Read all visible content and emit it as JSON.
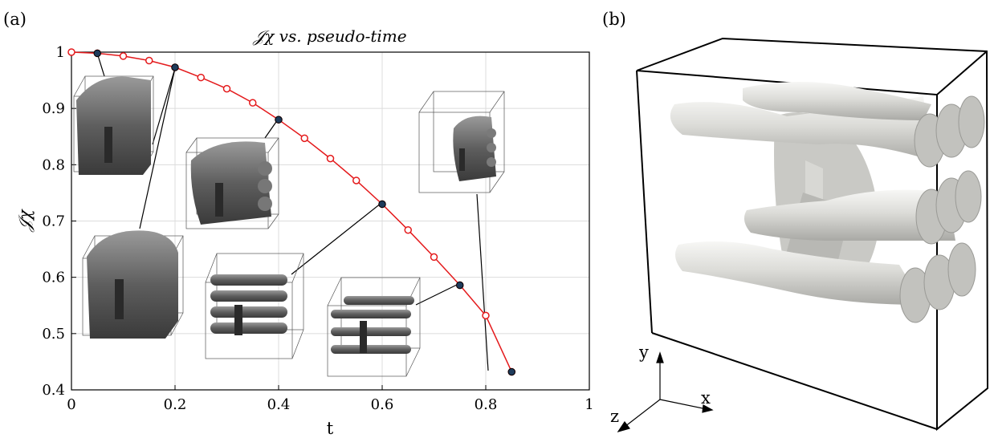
{
  "panels": {
    "a_label": "(a)",
    "b_label": "(b)"
  },
  "chart_data": {
    "type": "line",
    "title": "𝒥χ vs. pseudo-time",
    "xlabel": "t",
    "ylabel": "𝒥χ",
    "xlim": [
      0,
      1
    ],
    "ylim": [
      0.4,
      1
    ],
    "xticks": [
      0,
      0.2,
      0.4,
      0.6,
      0.8,
      1
    ],
    "xtick_labels": [
      "0",
      "0.2",
      "0.4",
      "0.6",
      "0.8",
      "1"
    ],
    "yticks": [
      0.4,
      0.5,
      0.6,
      0.7,
      0.8,
      0.9,
      1
    ],
    "ytick_labels": [
      "0.4",
      "0.5",
      "0.6",
      "0.7",
      "0.8",
      "0.9",
      "1"
    ],
    "grid": true,
    "series": [
      {
        "color": "#e41a1c",
        "marker": "open-circle",
        "x": [
          0,
          0.05,
          0.1,
          0.15,
          0.2,
          0.25,
          0.3,
          0.35,
          0.4,
          0.45,
          0.5,
          0.55,
          0.6,
          0.65,
          0.7,
          0.75,
          0.8,
          0.85
        ],
        "y": [
          1.0,
          0.998,
          0.993,
          0.985,
          0.973,
          0.955,
          0.935,
          0.91,
          0.88,
          0.847,
          0.811,
          0.772,
          0.73,
          0.684,
          0.636,
          0.586,
          0.532,
          0.432
        ]
      }
    ],
    "highlighted_points": {
      "color": "#1f3b5b",
      "x": [
        0.05,
        0.2,
        0.4,
        0.6,
        0.75,
        0.85
      ],
      "y": [
        0.998,
        0.973,
        0.88,
        0.73,
        0.586,
        0.432
      ]
    }
  },
  "axes3d": {
    "x_label": "x",
    "y_label": "y",
    "z_label": "z"
  }
}
